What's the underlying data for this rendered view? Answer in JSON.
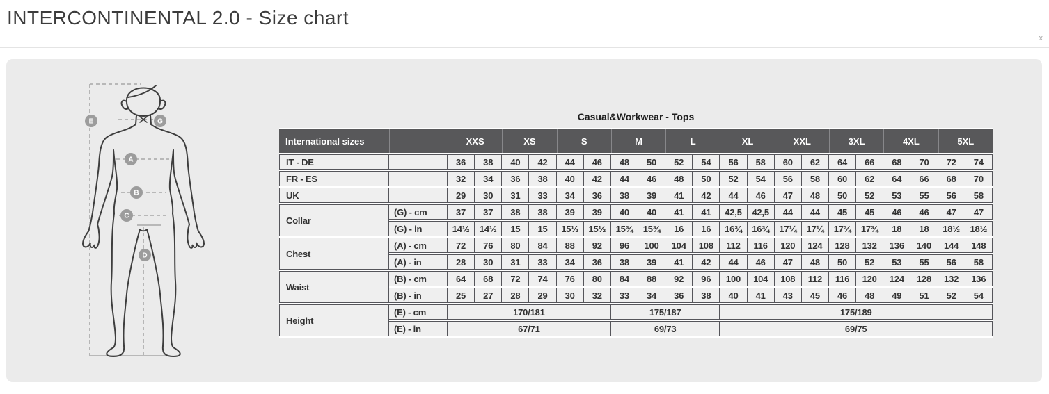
{
  "page": {
    "title": "INTERCONTINENTAL 2.0 - Size chart",
    "close_label": "x"
  },
  "diagram": {
    "markers": [
      {
        "letter": "E"
      },
      {
        "letter": "G"
      },
      {
        "letter": "A"
      },
      {
        "letter": "B"
      },
      {
        "letter": "C"
      },
      {
        "letter": "D"
      }
    ]
  },
  "chart_data": {
    "type": "table",
    "title": "Casual&Workwear - Tops",
    "corner_label": "International sizes",
    "sizes": [
      "XXS",
      "XS",
      "S",
      "M",
      "L",
      "XL",
      "XXL",
      "3XL",
      "4XL",
      "5XL"
    ],
    "rows": [
      {
        "label": "IT - DE",
        "sublabel": "",
        "values": [
          "36",
          "38",
          "40",
          "42",
          "44",
          "46",
          "48",
          "50",
          "52",
          "54",
          "56",
          "58",
          "60",
          "62",
          "64",
          "66",
          "68",
          "70",
          "72",
          "74"
        ]
      },
      {
        "label": "FR - ES",
        "sublabel": "",
        "values": [
          "32",
          "34",
          "36",
          "38",
          "40",
          "42",
          "44",
          "46",
          "48",
          "50",
          "52",
          "54",
          "56",
          "58",
          "60",
          "62",
          "64",
          "66",
          "68",
          "70"
        ]
      },
      {
        "label": "UK",
        "sublabel": "",
        "values": [
          "29",
          "30",
          "31",
          "33",
          "34",
          "36",
          "38",
          "39",
          "41",
          "42",
          "44",
          "46",
          "47",
          "48",
          "50",
          "52",
          "53",
          "55",
          "56",
          "58"
        ]
      },
      {
        "label": "Collar",
        "rowspan": 2,
        "sublabel": "(G) - cm",
        "values": [
          "37",
          "37",
          "38",
          "38",
          "39",
          "39",
          "40",
          "40",
          "41",
          "41",
          "42,5",
          "42,5",
          "44",
          "44",
          "45",
          "45",
          "46",
          "46",
          "47",
          "47"
        ]
      },
      {
        "label": null,
        "sublabel": "(G)  - in",
        "values": [
          "14½",
          "14½",
          "15",
          "15",
          "15½",
          "15½",
          "15¾",
          "15¾",
          "16",
          "16",
          "16¾",
          "16¾",
          "17¼",
          "17¼",
          "17¾",
          "17¾",
          "18",
          "18",
          "18½",
          "18½"
        ]
      },
      {
        "label": "Chest",
        "rowspan": 2,
        "sublabel": "(A) - cm",
        "values": [
          "72",
          "76",
          "80",
          "84",
          "88",
          "92",
          "96",
          "100",
          "104",
          "108",
          "112",
          "116",
          "120",
          "124",
          "128",
          "132",
          "136",
          "140",
          "144",
          "148"
        ]
      },
      {
        "label": null,
        "sublabel": "(A) - in",
        "values": [
          "28",
          "30",
          "31",
          "33",
          "34",
          "36",
          "38",
          "39",
          "41",
          "42",
          "44",
          "46",
          "47",
          "48",
          "50",
          "52",
          "53",
          "55",
          "56",
          "58"
        ]
      },
      {
        "label": "Waist",
        "rowspan": 2,
        "sublabel": "(B) - cm",
        "values": [
          "64",
          "68",
          "72",
          "74",
          "76",
          "80",
          "84",
          "88",
          "92",
          "96",
          "100",
          "104",
          "108",
          "112",
          "116",
          "120",
          "124",
          "128",
          "132",
          "136"
        ]
      },
      {
        "label": null,
        "sublabel": "(B) - in",
        "values": [
          "25",
          "27",
          "28",
          "29",
          "30",
          "32",
          "33",
          "34",
          "36",
          "38",
          "40",
          "41",
          "43",
          "45",
          "46",
          "48",
          "49",
          "51",
          "52",
          "54"
        ]
      },
      {
        "label": "Height",
        "rowspan": 2,
        "sublabel": "(E) - cm",
        "values": [
          {
            "text": "170/181",
            "span": 6
          },
          {
            "text": "175/187",
            "span": 4
          },
          {
            "text": "175/189",
            "span": 10
          }
        ]
      },
      {
        "label": null,
        "sublabel": "(E) - in",
        "values": [
          {
            "text": "67/71",
            "span": 6
          },
          {
            "text": "69/73",
            "span": 4
          },
          {
            "text": "69/75",
            "span": 10
          }
        ]
      }
    ]
  },
  "colors": {
    "header_bg": "#58585a",
    "cell_bg": "#efefef",
    "panel_bg": "#ebebeb",
    "border": "#55555a",
    "badge": "#9c9c9c"
  }
}
